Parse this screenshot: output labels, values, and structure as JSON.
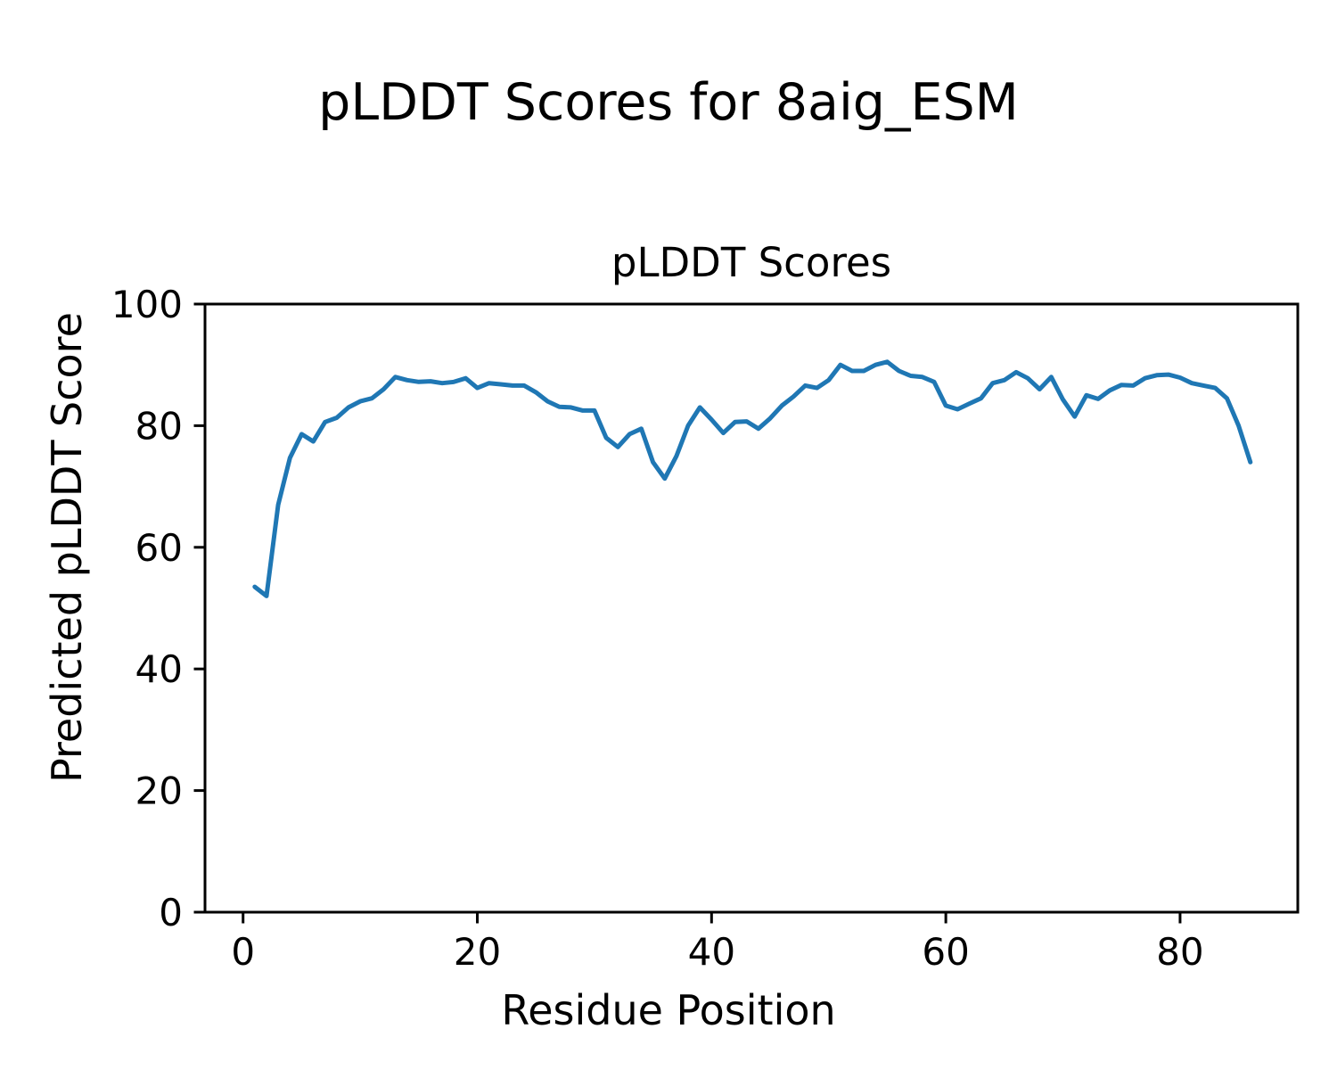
{
  "figure": {
    "suptitle": "pLDDT Scores for 8aig_ESM"
  },
  "chart_data": {
    "type": "line",
    "title": "pLDDT Scores",
    "xlabel": "Residue Position",
    "ylabel": "Predicted pLDDT Score",
    "legend": "none",
    "grid": false,
    "line_color": "#1f77b4",
    "line_width": 5,
    "xlim": [
      -3.25,
      90.05
    ],
    "ylim": [
      0,
      100
    ],
    "xticks": [
      0,
      20,
      40,
      60,
      80
    ],
    "yticks": [
      0,
      20,
      40,
      60,
      80,
      100
    ],
    "x": [
      1,
      2,
      3,
      4,
      5,
      6,
      7,
      8,
      9,
      10,
      11,
      12,
      13,
      14,
      15,
      16,
      17,
      18,
      19,
      20,
      21,
      22,
      23,
      24,
      25,
      26,
      27,
      28,
      29,
      30,
      31,
      32,
      33,
      34,
      35,
      36,
      37,
      38,
      39,
      40,
      41,
      42,
      43,
      44,
      45,
      46,
      47,
      48,
      49,
      50,
      51,
      52,
      53,
      54,
      55,
      56,
      57,
      58,
      59,
      60,
      61,
      62,
      63,
      64,
      65,
      66,
      67,
      68,
      69,
      70,
      71,
      72,
      73,
      74,
      75,
      76,
      77,
      78,
      79,
      80,
      81,
      82,
      83,
      84,
      85,
      86
    ],
    "values": [
      53.5,
      52,
      67,
      74.7,
      78.6,
      77.4,
      80.6,
      81.3,
      83,
      84,
      84.5,
      86,
      88,
      87.5,
      87.2,
      87.3,
      87,
      87.2,
      87.8,
      86.2,
      87,
      86.8,
      86.6,
      86.6,
      85.5,
      84,
      83.1,
      83,
      82.5,
      82.5,
      78,
      76.5,
      78.6,
      79.5,
      74,
      71.3,
      75,
      80,
      83,
      81,
      78.8,
      80.6,
      80.7,
      79.5,
      81.2,
      83.3,
      84.8,
      86.6,
      86.2,
      87.5,
      90,
      89,
      89,
      90,
      90.5,
      89,
      88.2,
      88,
      87.2,
      83.3,
      82.7,
      83.6,
      84.5,
      87,
      87.5,
      88.8,
      87.8,
      86,
      88,
      84.3,
      81.5,
      85,
      84.4,
      85.8,
      86.7,
      86.6,
      87.8,
      88.3,
      88.4,
      87.9,
      87,
      86.6,
      86.2,
      84.5,
      80,
      74
    ]
  }
}
